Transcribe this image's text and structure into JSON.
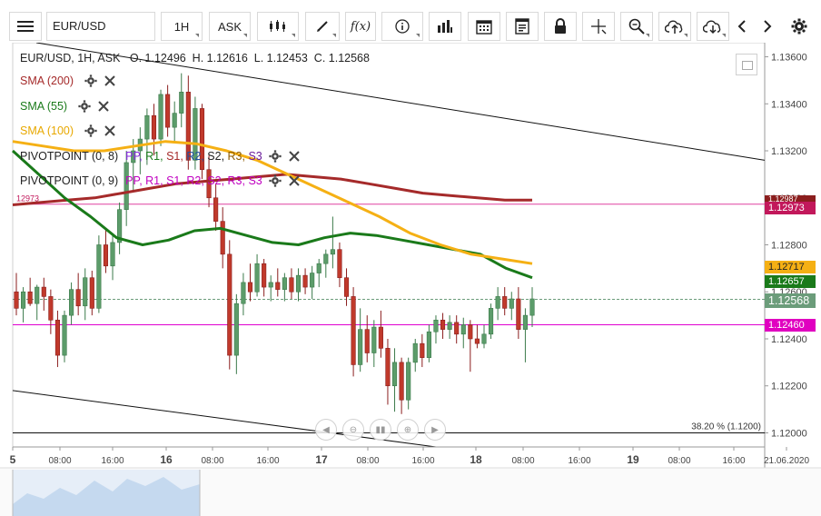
{
  "toolbar": {
    "symbol": "EUR/USD",
    "timeframe": "1H",
    "price_type": "ASK",
    "icons": [
      "menu-icon",
      "candle-type-icon",
      "draw-icon",
      "function-icon",
      "info-icon",
      "bar-volume-icon",
      "calendar-icon",
      "sheet-icon",
      "lock-icon",
      "crosshair-icon",
      "zoom-icon",
      "upload-icon",
      "download-icon",
      "prev-icon",
      "next-icon",
      "settings-icon"
    ]
  },
  "legend": {
    "ohlc_line": "EUR/USD, 1H, ASK   O. 1.12496  H. 1.12616  L. 1.12453  C. 1.12568",
    "sma200": "SMA (200)",
    "sma55": "SMA (55)",
    "sma100": "SMA (100)",
    "pivot1_name": "PIVOTPOINT (0, 8)",
    "pivot2_name": "PIVOTPOINT (0, 9)",
    "pivot_items": [
      "PP,",
      "R1,",
      "S1,",
      "R2,",
      "S2,",
      "R3,",
      "S3"
    ]
  },
  "colors": {
    "sma200": "#a52a2a",
    "sma55": "#1a7a1a",
    "sma100": "#f5b014",
    "up": "#5c9c6a",
    "down": "#c0392b",
    "pink_line": "#e040a0"
  },
  "price_labels": {
    "sma200": "1.12987",
    "pink": "1.12973",
    "sma100": "1.12717",
    "sma55": "1.12657",
    "last": "1.12568",
    "magenta": "1.12460",
    "behind": "1.12600",
    "left_pink": "12973"
  },
  "fib_label": "38.20 % (1.1200)",
  "chart_data": {
    "type": "candlestick",
    "symbol": "EUR/USD",
    "timeframe": "1H",
    "y_ticks": [
      "1.13600",
      "1.13400",
      "1.13200",
      "1.13000",
      "1.12800",
      "1.12600",
      "1.12400",
      "1.12200",
      "1.12000"
    ],
    "ylim": [
      1.1194,
      1.1366
    ],
    "x_ticks": [
      "5",
      "08:00",
      "16:00",
      "16",
      "08:00",
      "16:00",
      "17",
      "08:00",
      "16:00",
      "18",
      "08:00",
      "16:00",
      "19",
      "08:00",
      "16:00",
      "21.06.2020"
    ],
    "candles": [
      {
        "o": 1.126,
        "h": 1.1268,
        "l": 1.125,
        "c": 1.1253
      },
      {
        "o": 1.1253,
        "h": 1.1262,
        "l": 1.1247,
        "c": 1.126
      },
      {
        "o": 1.126,
        "h": 1.1266,
        "l": 1.1254,
        "c": 1.1255
      },
      {
        "o": 1.1255,
        "h": 1.1263,
        "l": 1.1248,
        "c": 1.1262
      },
      {
        "o": 1.1262,
        "h": 1.1266,
        "l": 1.1252,
        "c": 1.1258
      },
      {
        "o": 1.1258,
        "h": 1.1261,
        "l": 1.1242,
        "c": 1.1248
      },
      {
        "o": 1.1248,
        "h": 1.1252,
        "l": 1.1228,
        "c": 1.1233
      },
      {
        "o": 1.1233,
        "h": 1.1252,
        "l": 1.123,
        "c": 1.125
      },
      {
        "o": 1.125,
        "h": 1.1264,
        "l": 1.1246,
        "c": 1.1261
      },
      {
        "o": 1.1261,
        "h": 1.1268,
        "l": 1.125,
        "c": 1.1254
      },
      {
        "o": 1.1254,
        "h": 1.127,
        "l": 1.1248,
        "c": 1.1266
      },
      {
        "o": 1.1266,
        "h": 1.1269,
        "l": 1.125,
        "c": 1.1253
      },
      {
        "o": 1.1253,
        "h": 1.1284,
        "l": 1.1251,
        "c": 1.128
      },
      {
        "o": 1.128,
        "h": 1.1287,
        "l": 1.1268,
        "c": 1.1271
      },
      {
        "o": 1.1271,
        "h": 1.1285,
        "l": 1.1265,
        "c": 1.1281
      },
      {
        "o": 1.1281,
        "h": 1.1298,
        "l": 1.1276,
        "c": 1.1295
      },
      {
        "o": 1.1295,
        "h": 1.132,
        "l": 1.1288,
        "c": 1.1315
      },
      {
        "o": 1.1315,
        "h": 1.1325,
        "l": 1.1303,
        "c": 1.132
      },
      {
        "o": 1.132,
        "h": 1.133,
        "l": 1.131,
        "c": 1.1325
      },
      {
        "o": 1.1325,
        "h": 1.1338,
        "l": 1.1314,
        "c": 1.1335
      },
      {
        "o": 1.1335,
        "h": 1.134,
        "l": 1.1318,
        "c": 1.1325
      },
      {
        "o": 1.1325,
        "h": 1.1346,
        "l": 1.1322,
        "c": 1.1344
      },
      {
        "o": 1.1344,
        "h": 1.1348,
        "l": 1.1326,
        "c": 1.133
      },
      {
        "o": 1.133,
        "h": 1.1341,
        "l": 1.1324,
        "c": 1.1336
      },
      {
        "o": 1.1336,
        "h": 1.1353,
        "l": 1.133,
        "c": 1.1345
      },
      {
        "o": 1.1345,
        "h": 1.1352,
        "l": 1.1312,
        "c": 1.1316
      },
      {
        "o": 1.1316,
        "h": 1.1343,
        "l": 1.1312,
        "c": 1.1338
      },
      {
        "o": 1.1338,
        "h": 1.134,
        "l": 1.1308,
        "c": 1.1312
      },
      {
        "o": 1.1312,
        "h": 1.1318,
        "l": 1.1296,
        "c": 1.13
      },
      {
        "o": 1.13,
        "h": 1.1306,
        "l": 1.1286,
        "c": 1.129
      },
      {
        "o": 1.129,
        "h": 1.1296,
        "l": 1.127,
        "c": 1.1276
      },
      {
        "o": 1.1276,
        "h": 1.1282,
        "l": 1.1227,
        "c": 1.1233
      },
      {
        "o": 1.1233,
        "h": 1.1259,
        "l": 1.1225,
        "c": 1.1255
      },
      {
        "o": 1.1255,
        "h": 1.1268,
        "l": 1.125,
        "c": 1.1264
      },
      {
        "o": 1.1264,
        "h": 1.1272,
        "l": 1.1256,
        "c": 1.126
      },
      {
        "o": 1.126,
        "h": 1.1276,
        "l": 1.1258,
        "c": 1.1272
      },
      {
        "o": 1.1272,
        "h": 1.1274,
        "l": 1.1258,
        "c": 1.1262
      },
      {
        "o": 1.1262,
        "h": 1.1267,
        "l": 1.1256,
        "c": 1.1264
      },
      {
        "o": 1.1264,
        "h": 1.127,
        "l": 1.1258,
        "c": 1.1261
      },
      {
        "o": 1.1261,
        "h": 1.1268,
        "l": 1.1256,
        "c": 1.1266
      },
      {
        "o": 1.1266,
        "h": 1.127,
        "l": 1.1257,
        "c": 1.126
      },
      {
        "o": 1.126,
        "h": 1.127,
        "l": 1.1256,
        "c": 1.1267
      },
      {
        "o": 1.1267,
        "h": 1.127,
        "l": 1.1259,
        "c": 1.1262
      },
      {
        "o": 1.1262,
        "h": 1.1271,
        "l": 1.1257,
        "c": 1.1268
      },
      {
        "o": 1.1268,
        "h": 1.1274,
        "l": 1.1262,
        "c": 1.1272
      },
      {
        "o": 1.1272,
        "h": 1.1278,
        "l": 1.1266,
        "c": 1.1276
      },
      {
        "o": 1.1276,
        "h": 1.1292,
        "l": 1.127,
        "c": 1.1278
      },
      {
        "o": 1.1278,
        "h": 1.1281,
        "l": 1.1262,
        "c": 1.1266
      },
      {
        "o": 1.1266,
        "h": 1.127,
        "l": 1.1254,
        "c": 1.1258
      },
      {
        "o": 1.1258,
        "h": 1.1262,
        "l": 1.1224,
        "c": 1.1229
      },
      {
        "o": 1.1229,
        "h": 1.1253,
        "l": 1.1226,
        "c": 1.1244
      },
      {
        "o": 1.1244,
        "h": 1.125,
        "l": 1.123,
        "c": 1.1234
      },
      {
        "o": 1.1234,
        "h": 1.1248,
        "l": 1.1228,
        "c": 1.1245
      },
      {
        "o": 1.1245,
        "h": 1.1252,
        "l": 1.1232,
        "c": 1.1236
      },
      {
        "o": 1.1236,
        "h": 1.124,
        "l": 1.1212,
        "c": 1.122
      },
      {
        "o": 1.122,
        "h": 1.1236,
        "l": 1.1209,
        "c": 1.123
      },
      {
        "o": 1.123,
        "h": 1.1232,
        "l": 1.1208,
        "c": 1.1214
      },
      {
        "o": 1.1214,
        "h": 1.1232,
        "l": 1.121,
        "c": 1.123
      },
      {
        "o": 1.123,
        "h": 1.124,
        "l": 1.1226,
        "c": 1.1238
      },
      {
        "o": 1.1238,
        "h": 1.1242,
        "l": 1.1228,
        "c": 1.1232
      },
      {
        "o": 1.1232,
        "h": 1.1246,
        "l": 1.123,
        "c": 1.1243
      },
      {
        "o": 1.1243,
        "h": 1.125,
        "l": 1.1238,
        "c": 1.1248
      },
      {
        "o": 1.1248,
        "h": 1.1251,
        "l": 1.124,
        "c": 1.1244
      },
      {
        "o": 1.1244,
        "h": 1.125,
        "l": 1.124,
        "c": 1.1247
      },
      {
        "o": 1.1247,
        "h": 1.125,
        "l": 1.1238,
        "c": 1.1242
      },
      {
        "o": 1.1242,
        "h": 1.1249,
        "l": 1.1236,
        "c": 1.1246
      },
      {
        "o": 1.1246,
        "h": 1.1248,
        "l": 1.1226,
        "c": 1.124
      },
      {
        "o": 1.124,
        "h": 1.1246,
        "l": 1.1236,
        "c": 1.1238
      },
      {
        "o": 1.1238,
        "h": 1.1246,
        "l": 1.1236,
        "c": 1.1242
      },
      {
        "o": 1.1242,
        "h": 1.1255,
        "l": 1.124,
        "c": 1.1253
      },
      {
        "o": 1.1253,
        "h": 1.1262,
        "l": 1.1248,
        "c": 1.1258
      },
      {
        "o": 1.1258,
        "h": 1.1262,
        "l": 1.125,
        "c": 1.1253
      },
      {
        "o": 1.1253,
        "h": 1.126,
        "l": 1.1248,
        "c": 1.1257
      },
      {
        "o": 1.1257,
        "h": 1.1262,
        "l": 1.124,
        "c": 1.1244
      },
      {
        "o": 1.1244,
        "h": 1.1253,
        "l": 1.123,
        "c": 1.125
      },
      {
        "o": 1.125,
        "h": 1.1262,
        "l": 1.1245,
        "c": 1.1257
      }
    ],
    "series": [
      {
        "name": "SMA (200)",
        "color": "#a52a2a",
        "values": [
          1.1297,
          1.1298,
          1.1299,
          1.13,
          1.1302,
          1.1304,
          1.1306,
          1.1307,
          1.1308,
          1.1309,
          1.131,
          1.1309,
          1.1308,
          1.1306,
          1.1304,
          1.1302,
          1.1301,
          1.13,
          1.1299,
          1.1299
        ]
      },
      {
        "name": "SMA (55)",
        "color": "#1a7a1a",
        "values": [
          1.132,
          1.131,
          1.13,
          1.1292,
          1.1283,
          1.128,
          1.1282,
          1.1286,
          1.1287,
          1.1284,
          1.1281,
          1.128,
          1.1283,
          1.1285,
          1.1284,
          1.1282,
          1.128,
          1.1278,
          1.1276,
          1.127,
          1.1266
        ]
      },
      {
        "name": "SMA (100)",
        "color": "#f5b014",
        "values": [
          1.1324,
          1.1322,
          1.132,
          1.132,
          1.1322,
          1.1324,
          1.1323,
          1.132,
          1.1316,
          1.131,
          1.1304,
          1.1298,
          1.1292,
          1.1285,
          1.128,
          1.1276,
          1.1274,
          1.1272
        ]
      }
    ],
    "fib_level": 1.12
  }
}
